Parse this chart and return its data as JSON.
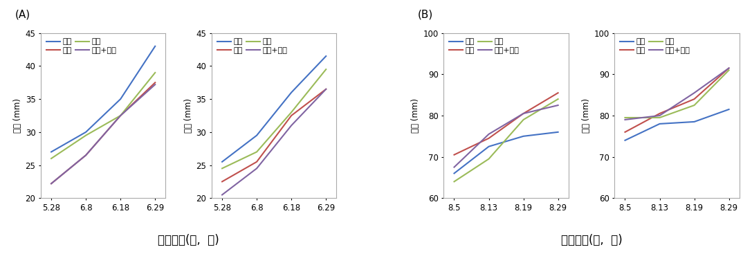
{
  "panel_A": {
    "xlabel_dates": [
      "5.28",
      "6.8",
      "6.18",
      "6.29"
    ],
    "ylabel": "횊경 (mm)",
    "ylim": [
      20,
      45
    ],
    "yticks": [
      20,
      25,
      30,
      35,
      40,
      45
    ],
    "sub1": {
      "적습": [
        27.0,
        30.0,
        35.0,
        43.0
      ],
      "건조": [
        22.2,
        26.5,
        32.5,
        37.5
      ],
      "과습": [
        26.0,
        29.5,
        32.5,
        39.0
      ],
      "건조+과습": [
        22.2,
        26.5,
        32.5,
        37.2
      ]
    },
    "sub2": {
      "적습": [
        25.5,
        29.5,
        36.0,
        41.5
      ],
      "건조": [
        22.5,
        25.5,
        32.5,
        36.5
      ],
      "과습": [
        24.5,
        27.0,
        33.0,
        39.5
      ],
      "건조+과습": [
        20.5,
        24.5,
        31.0,
        36.5
      ]
    },
    "colors": {
      "적습": "#4472C4",
      "건조": "#C0504D",
      "과습": "#9BBB59",
      "건조+과습": "#8064A2"
    }
  },
  "panel_B": {
    "xlabel_dates": [
      "8.5",
      "8.13",
      "8.19",
      "8.29"
    ],
    "ylabel": "횊경 (mm)",
    "ylim": [
      60,
      100
    ],
    "yticks": [
      60,
      70,
      80,
      90,
      100
    ],
    "sub1": {
      "건조": [
        66.0,
        72.5,
        75.0,
        76.0
      ],
      "적습": [
        70.5,
        74.5,
        80.5,
        85.5
      ],
      "과습": [
        64.0,
        69.5,
        79.0,
        84.0
      ],
      "건조+과습": [
        67.5,
        75.5,
        80.5,
        82.5
      ]
    },
    "sub2": {
      "건조": [
        74.0,
        78.0,
        78.5,
        81.5
      ],
      "적습": [
        76.0,
        80.5,
        84.0,
        91.5
      ],
      "과습": [
        79.5,
        79.5,
        82.5,
        91.0
      ],
      "건조+과습": [
        79.0,
        80.0,
        85.5,
        91.5
      ]
    },
    "colors": {
      "건조": "#4472C4",
      "적습": "#C0504D",
      "과습": "#9BBB59",
      "건조+과습": "#8064A2"
    }
  },
  "panel_A_legend_order_sub1": [
    "적습",
    "건조",
    "과습",
    "건조+과습"
  ],
  "panel_B_legend_order_sub1": [
    "건조",
    "적습",
    "과습",
    "건조+과습"
  ],
  "xlabel_shared_A": "조사시기(월,  일)",
  "xlabel_shared_B": "조사시기(월,  일)",
  "label_A": "(A)",
  "label_B": "(B)",
  "bg_color": "#FFFFFF",
  "font_size_legend": 8,
  "font_size_axis": 8.5,
  "font_size_label": 11,
  "font_size_xlabel": 12
}
